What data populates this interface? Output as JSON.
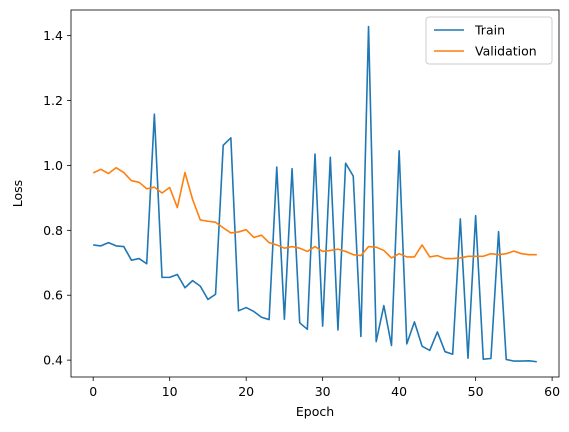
{
  "chart_data": {
    "type": "line",
    "title": "",
    "xlabel": "Epoch",
    "ylabel": "Loss",
    "xlim": [
      -2.9,
      60.9
    ],
    "ylim": [
      0.348,
      1.479
    ],
    "xticks": [
      0,
      10,
      20,
      30,
      40,
      50,
      60
    ],
    "yticks": [
      0.4,
      0.6,
      0.8,
      1.0,
      1.2,
      1.4
    ],
    "ytick_labels": [
      "0.4",
      "0.6",
      "0.8",
      "1.0",
      "1.2",
      "1.4"
    ],
    "grid": false,
    "legend_position": "top-right",
    "x": [
      0,
      1,
      2,
      3,
      4,
      5,
      6,
      7,
      8,
      9,
      10,
      11,
      12,
      13,
      14,
      15,
      16,
      17,
      18,
      19,
      20,
      21,
      22,
      23,
      24,
      25,
      26,
      27,
      28,
      29,
      30,
      31,
      32,
      33,
      34,
      35,
      36,
      37,
      38,
      39,
      40,
      41,
      42,
      43,
      44,
      45,
      46,
      47,
      48,
      49,
      50,
      51,
      52,
      53,
      54,
      55,
      56,
      57,
      58
    ],
    "series": [
      {
        "name": "Train",
        "color": "#1f77b4",
        "values": [
          0.755,
          0.752,
          0.762,
          0.752,
          0.75,
          0.708,
          0.713,
          0.697,
          1.158,
          0.655,
          0.655,
          0.664,
          0.623,
          0.645,
          0.628,
          0.587,
          0.603,
          1.062,
          1.085,
          0.552,
          0.562,
          0.55,
          0.532,
          0.525,
          0.995,
          0.526,
          0.99,
          0.515,
          0.495,
          1.035,
          0.505,
          1.025,
          0.493,
          1.007,
          0.967,
          0.473,
          1.428,
          0.457,
          0.568,
          0.445,
          1.045,
          0.45,
          0.518,
          0.443,
          0.43,
          0.487,
          0.426,
          0.418,
          0.835,
          0.406,
          0.845,
          0.403,
          0.405,
          0.796,
          0.402,
          0.397,
          0.397,
          0.398,
          0.395
        ]
      },
      {
        "name": "Validation",
        "color": "#ff7f0e",
        "values": [
          0.977,
          0.988,
          0.975,
          0.993,
          0.978,
          0.953,
          0.948,
          0.928,
          0.933,
          0.915,
          0.932,
          0.87,
          0.978,
          0.895,
          0.832,
          0.828,
          0.825,
          0.808,
          0.792,
          0.795,
          0.802,
          0.778,
          0.785,
          0.762,
          0.755,
          0.745,
          0.75,
          0.745,
          0.735,
          0.75,
          0.735,
          0.738,
          0.742,
          0.735,
          0.725,
          0.722,
          0.75,
          0.748,
          0.738,
          0.715,
          0.728,
          0.718,
          0.718,
          0.755,
          0.718,
          0.722,
          0.713,
          0.713,
          0.715,
          0.72,
          0.72,
          0.72,
          0.728,
          0.725,
          0.728,
          0.736,
          0.728,
          0.725,
          0.725
        ]
      }
    ]
  }
}
